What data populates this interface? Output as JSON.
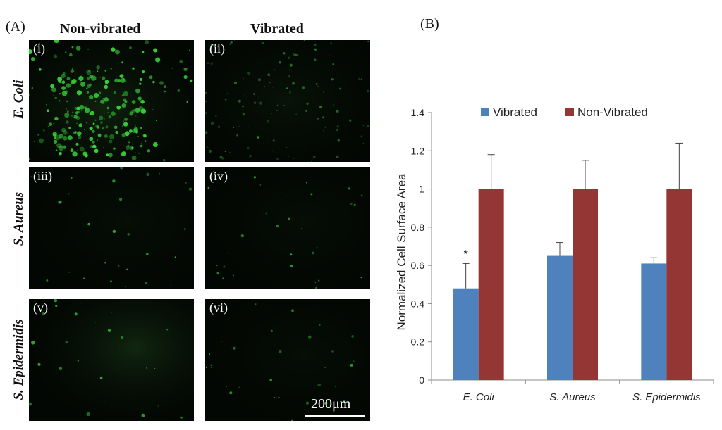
{
  "panelA": {
    "label": "(A)",
    "columns": [
      "Non-vibrated",
      "Vibrated"
    ],
    "rows": [
      "E. Coli",
      "S. Aureus",
      "S. Epidermidis"
    ],
    "images": [
      {
        "label": "(i)",
        "tone": "bright"
      },
      {
        "label": "(ii)",
        "tone": "dim"
      },
      {
        "label": "(iii)",
        "tone": "sparse"
      },
      {
        "label": "(iv)",
        "tone": "sparse"
      },
      {
        "label": "(v)",
        "tone": "glow"
      },
      {
        "label": "(vi)",
        "tone": "sparse"
      }
    ],
    "scale_bar": "200μm"
  },
  "panelB": {
    "label": "(B)"
  },
  "chart_data": {
    "type": "bar",
    "ylabel": "Normalized Cell Surface Area",
    "ylim": [
      0,
      1.4
    ],
    "yticks": [
      "0",
      "0.2",
      "0.4",
      "0.6",
      "0.8",
      "1",
      "1.2",
      "1.4"
    ],
    "categories": [
      "E. Coli",
      "S. Aureus",
      "S. Epidermidis"
    ],
    "series": [
      {
        "name": "Vibrated",
        "color": "#4f81bd",
        "values": [
          0.48,
          0.65,
          0.61
        ],
        "errors": [
          0.13,
          0.07,
          0.03
        ]
      },
      {
        "name": "Non-Vibrated",
        "color": "#943634",
        "values": [
          1.0,
          1.0,
          1.0
        ],
        "errors": [
          0.18,
          0.15,
          0.24
        ]
      }
    ],
    "annotations": [
      {
        "category": "E. Coli",
        "series": "Vibrated",
        "text": "*"
      }
    ],
    "legend": "top",
    "grid": false
  }
}
